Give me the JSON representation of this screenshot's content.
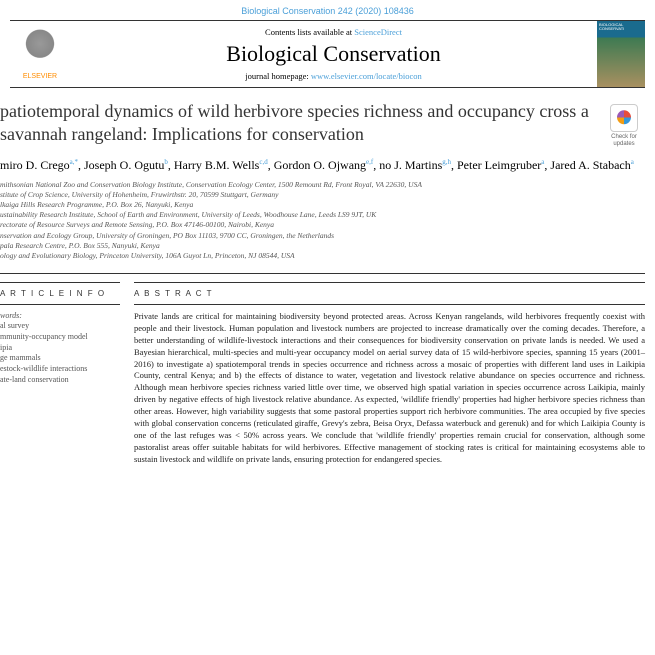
{
  "citation": "Biological Conservation 242 (2020) 108436",
  "banner": {
    "contents_prefix": "Contents lists available at ",
    "contents_link": "ScienceDirect",
    "journal_title": "Biological Conservation",
    "homepage_prefix": "journal homepage: ",
    "homepage_link": "www.elsevier.com/locate/biocon",
    "publisher": "ELSEVIER"
  },
  "title": "patiotemporal dynamics of wild herbivore species richness and occupancy cross a savannah rangeland: Implications for conservation",
  "check_updates": "Check for updates",
  "authors_html": "miro D. Crego<sup>a,*</sup>, Joseph O. Ogutu<sup>b</sup>, Harry B.M. Wells<sup>c,d</sup>, Gordon O. Ojwang<sup>e,f</sup>, no J. Martins<sup>g,h</sup>, Peter Leimgruber<sup>a</sup>, Jared A. Stabach<sup>a</sup>",
  "affiliations": [
    "mithsonian National Zoo and Conservation Biology Institute, Conservation Ecology Center, 1500 Remount Rd, Front Royal, VA 22630, USA",
    "stitute of Crop Science, University of Hohenheim, Fruwirthstr. 20, 70599 Stuttgart, Germany",
    "lkaiga Hills Research Programme, P.O. Box 26, Nanyuki, Kenya",
    "ustainability Research Institute, School of Earth and Environment, University of Leeds, Woodhouse Lane, Leeds LS9 9JT, UK",
    "rectorate of Resource Surveys and Remote Sensing, P.O. Box 47146-00100, Nairobi, Kenya",
    "nservation and Ecology Group, University of Groningen, PO Box 11103, 9700 CC, Groningen, the Netherlands",
    "pala Research Centre, P.O. Box 555, Nanyuki, Kenya",
    "ology and Evolutionary Biology, Princeton University, 106A Guyot Ln, Princeton, NJ 08544, USA"
  ],
  "article_info_head": "A R T I C L E  I N F O",
  "abstract_head": "A B S T R A C T",
  "keywords_label": "words:",
  "keywords": [
    "al survey",
    "mmunity-occupancy model",
    "ipia",
    "ge mammals",
    "estock-wildlife interactions",
    "ate-land conservation"
  ],
  "abstract": "Private lands are critical for maintaining biodiversity beyond protected areas. Across Kenyan rangelands, wild herbivores frequently coexist with people and their livestock. Human population and livestock numbers are projected to increase dramatically over the coming decades. Therefore, a better understanding of wildlife-livestock interactions and their consequences for biodiversity conservation on private lands is needed. We used a Bayesian hierarchical, multi-species and multi-year occupancy model on aerial survey data of 15 wild-herbivore species, spanning 15 years (2001–2016) to investigate a) spatiotemporal trends in species occurrence and richness across a mosaic of properties with different land uses in Laikipia County, central Kenya; and b) the effects of distance to water, vegetation and livestock relative abundance on species occurrence and richness. Although mean herbivore species richness varied little over time, we observed high spatial variation in species occurrence across Laikipia, mainly driven by negative effects of high livestock relative abundance. As expected, 'wildlife friendly' properties had higher herbivore species richness than other areas. However, high variability suggests that some pastoral properties support rich herbivore communities. The area occupied by five species with global conservation concerns (reticulated giraffe, Grevy's zebra, Beisa Oryx, Defassa waterbuck and gerenuk) and for which Laikipia County is one of the last refuges was < 50% across years. We conclude that 'wildlife friendly' properties remain crucial for conservation, although some pastoralist areas offer suitable habitats for wild herbivores. Effective management of stocking rates is critical for maintaining ecosystems able to sustain livestock and wildlife on private lands, ensuring protection for endangered species."
}
